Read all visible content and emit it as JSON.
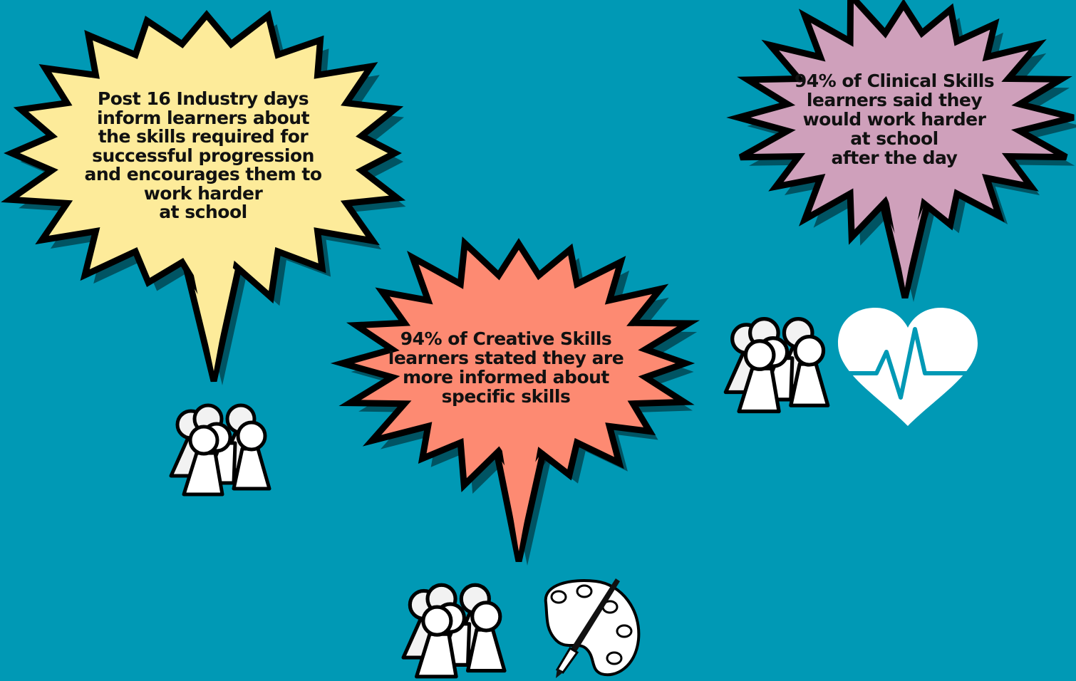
{
  "background_color": "#0099b5",
  "bursts": [
    {
      "id": "industry-days",
      "color": "#fdeb9a",
      "text": "Post 16 Industry days\ninform learners about\nthe skills required for\nsuccessful progression\nand encourages them to\nwork harder\nat school"
    },
    {
      "id": "creative-skills",
      "color": "#fd8a72",
      "text": "94% of Creative Skills\nlearners stated they are\nmore informed about\nspecific skills"
    },
    {
      "id": "clinical-skills",
      "color": "#cfa0bb",
      "text": "94% of Clinical Skills\nlearners said they\nwould work harder\nat school\nafter the day"
    }
  ],
  "icons": [
    "people-group-icon",
    "people-group-icon",
    "people-group-icon",
    "paint-palette-icon",
    "heart-pulse-icon"
  ]
}
